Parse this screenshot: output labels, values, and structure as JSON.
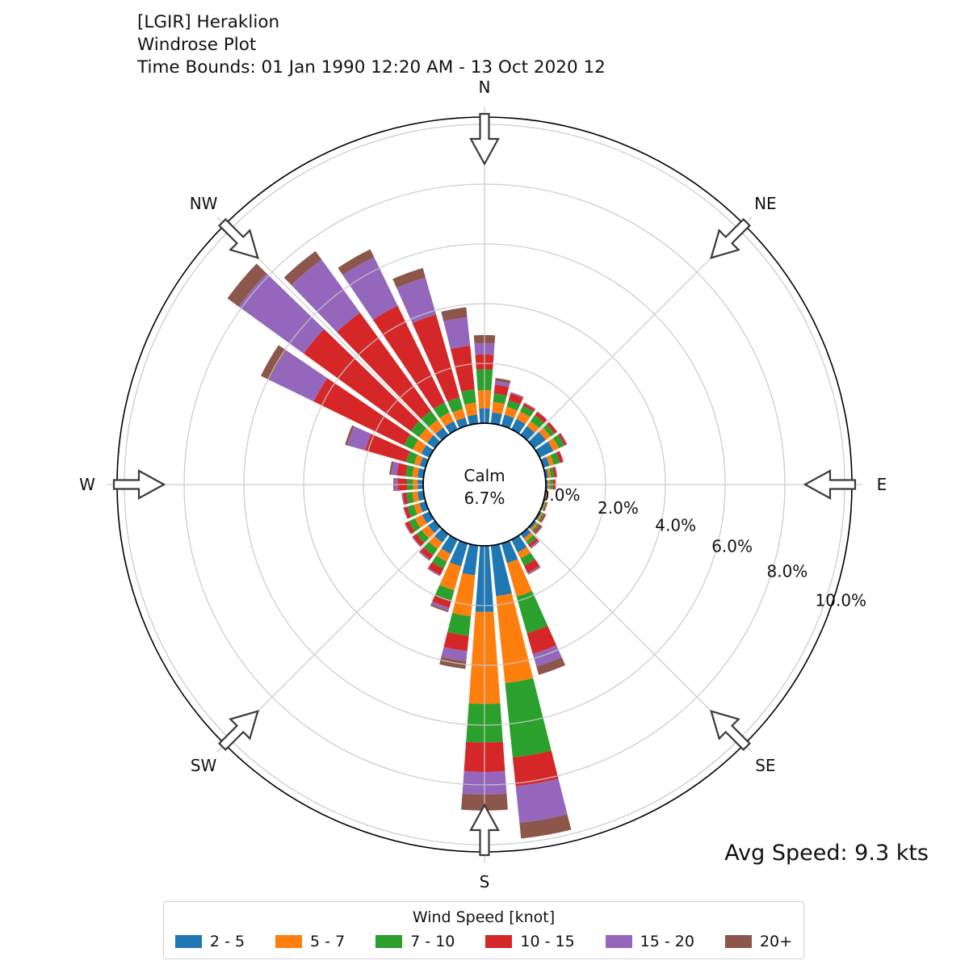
{
  "header": {
    "line1": "[LGIR] Heraklion",
    "line2": "Windrose Plot",
    "line3": "Time Bounds: 01 Jan 1990 12:20 AM - 13 Oct 2020 12"
  },
  "annotations": {
    "avg_speed": "Avg Speed: 9.3 kts",
    "calm_label": "Calm",
    "calm_value": "6.7%"
  },
  "compass": [
    {
      "label": "N",
      "deg": 0
    },
    {
      "label": "NE",
      "deg": 45
    },
    {
      "label": "E",
      "deg": 90
    },
    {
      "label": "SE",
      "deg": 135
    },
    {
      "label": "S",
      "deg": 180
    },
    {
      "label": "SW",
      "deg": 225
    },
    {
      "label": "W",
      "deg": 270
    },
    {
      "label": "NW",
      "deg": 315
    }
  ],
  "legend": {
    "title": "Wind Speed [knot]",
    "entries": [
      {
        "label": "2 - 5",
        "color": "#1f77b4"
      },
      {
        "label": "5 - 7",
        "color": "#ff7f0e"
      },
      {
        "label": "7 - 10",
        "color": "#2ca02c"
      },
      {
        "label": "10 - 15",
        "color": "#d62728"
      },
      {
        "label": "15 - 20",
        "color": "#9467bd"
      },
      {
        "label": "20+",
        "color": "#8c564b"
      }
    ]
  },
  "chart_data": {
    "type": "windrose-stacked-polar-bar",
    "units": "percent of observations",
    "calm_percent": 6.7,
    "avg_speed_kts": 9.3,
    "speed_bins": [
      "2 - 5",
      "5 - 7",
      "7 - 10",
      "10 - 15",
      "15 - 20",
      "20+"
    ],
    "colors": [
      "#1f77b4",
      "#ff7f0e",
      "#2ca02c",
      "#d62728",
      "#9467bd",
      "#8c564b"
    ],
    "r_ticks": [
      {
        "label": "0.0%",
        "value": 0
      },
      {
        "label": "2.0%",
        "value": 2
      },
      {
        "label": "4.0%",
        "value": 4
      },
      {
        "label": "6.0%",
        "value": 6
      },
      {
        "label": "8.0%",
        "value": 8
      },
      {
        "label": "10.0%",
        "value": 10
      }
    ],
    "r_max": 10.3,
    "sector_width_deg": 8.2,
    "directions": [
      {
        "deg": 0,
        "values": [
          0.5,
          0.6,
          0.7,
          0.5,
          0.38,
          0.27
        ]
      },
      {
        "deg": 10,
        "values": [
          0.37,
          0.35,
          0.29,
          0.3,
          0.12,
          0.1
        ]
      },
      {
        "deg": 20,
        "values": [
          0.38,
          0.27,
          0.23,
          0.23,
          0.03,
          0.02
        ]
      },
      {
        "deg": 30,
        "values": [
          0.39,
          0.28,
          0.21,
          0.09,
          0.02,
          0.01
        ]
      },
      {
        "deg": 40,
        "values": [
          0.36,
          0.21,
          0.25,
          0.13,
          0.02,
          0.0
        ]
      },
      {
        "deg": 50,
        "values": [
          0.48,
          0.2,
          0.16,
          0.11,
          0.01,
          0.0
        ]
      },
      {
        "deg": 60,
        "values": [
          0.51,
          0.21,
          0.2,
          0.08,
          0.03,
          0.0
        ]
      },
      {
        "deg": 70,
        "values": [
          0.21,
          0.15,
          0.21,
          0.12,
          0.01,
          0.0
        ]
      },
      {
        "deg": 80,
        "values": [
          0.1,
          0.08,
          0.11,
          0.08,
          0.02,
          0.01
        ]
      },
      {
        "deg": 90,
        "values": [
          0.08,
          0.06,
          0.1,
          0.08,
          0.01,
          0.01
        ]
      },
      {
        "deg": 100,
        "values": [
          0.03,
          0.02,
          0.03,
          0.02,
          0.0,
          0.0
        ]
      },
      {
        "deg": 110,
        "values": [
          0.04,
          0.03,
          0.04,
          0.03,
          0.01,
          0.0
        ]
      },
      {
        "deg": 120,
        "values": [
          0.07,
          0.05,
          0.06,
          0.05,
          0.02,
          0.0
        ]
      },
      {
        "deg": 130,
        "values": [
          0.09,
          0.07,
          0.08,
          0.07,
          0.03,
          0.01
        ]
      },
      {
        "deg": 140,
        "values": [
          0.18,
          0.12,
          0.14,
          0.1,
          0.04,
          0.02
        ]
      },
      {
        "deg": 150,
        "values": [
          0.47,
          0.23,
          0.27,
          0.27,
          0.04,
          0.02
        ]
      },
      {
        "deg": 160,
        "values": [
          0.68,
          1.17,
          1.27,
          0.72,
          0.44,
          0.29
        ]
      },
      {
        "deg": 170,
        "values": [
          1.7,
          2.93,
          2.5,
          0.97,
          1.23,
          0.53
        ]
      },
      {
        "deg": 180,
        "values": [
          2.21,
          3.08,
          1.29,
          0.99,
          0.75,
          0.54
        ]
      },
      {
        "deg": 190,
        "values": [
          1.0,
          1.38,
          0.66,
          0.51,
          0.34,
          0.26
        ]
      },
      {
        "deg": 200,
        "values": [
          0.8,
          0.83,
          0.38,
          0.23,
          0.1,
          0.05
        ]
      },
      {
        "deg": 210,
        "values": [
          0.53,
          0.29,
          0.26,
          0.23,
          0.04,
          0.01
        ]
      },
      {
        "deg": 220,
        "values": [
          0.35,
          0.27,
          0.25,
          0.17,
          0.04,
          0.02
        ]
      },
      {
        "deg": 230,
        "values": [
          0.28,
          0.26,
          0.22,
          0.15,
          0.03,
          0.01
        ]
      },
      {
        "deg": 240,
        "values": [
          0.27,
          0.27,
          0.22,
          0.14,
          0.02,
          0.01
        ]
      },
      {
        "deg": 250,
        "values": [
          0.21,
          0.2,
          0.22,
          0.12,
          0.02,
          0.01
        ]
      },
      {
        "deg": 260,
        "values": [
          0.2,
          0.18,
          0.2,
          0.12,
          0.03,
          0.01
        ]
      },
      {
        "deg": 270,
        "values": [
          0.18,
          0.16,
          0.2,
          0.32,
          0.1,
          0.04
        ]
      },
      {
        "deg": 280,
        "values": [
          0.2,
          0.18,
          0.22,
          0.3,
          0.18,
          0.07
        ]
      },
      {
        "deg": 290,
        "values": [
          0.2,
          0.2,
          0.28,
          1.42,
          0.62,
          0.08
        ]
      },
      {
        "deg": 300,
        "values": [
          0.3,
          0.32,
          0.33,
          3.35,
          1.66,
          0.31
        ]
      },
      {
        "deg": 310,
        "values": [
          0.32,
          0.33,
          0.35,
          4.42,
          2.68,
          0.47
        ]
      },
      {
        "deg": 320,
        "values": [
          0.3,
          0.32,
          0.38,
          4.05,
          2.19,
          0.35
        ]
      },
      {
        "deg": 330,
        "values": [
          0.3,
          0.33,
          0.37,
          3.6,
          1.81,
          0.29
        ]
      },
      {
        "deg": 340,
        "values": [
          0.28,
          0.3,
          0.4,
          2.88,
          1.29,
          0.33
        ]
      },
      {
        "deg": 350,
        "values": [
          0.3,
          0.4,
          0.45,
          1.47,
          0.95,
          0.34
        ]
      }
    ]
  }
}
